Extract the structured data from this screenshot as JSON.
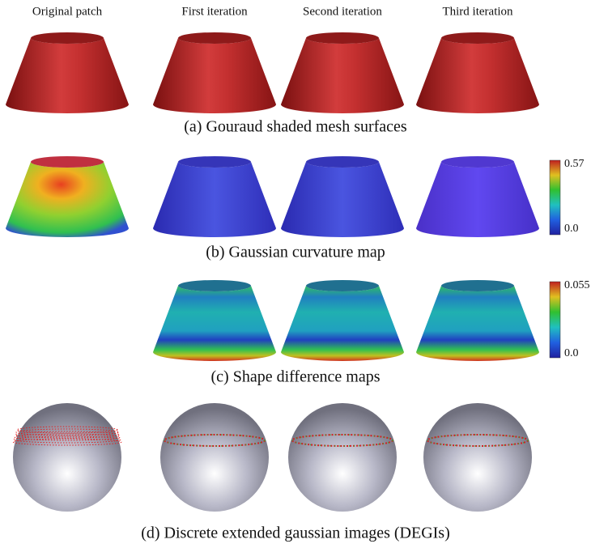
{
  "columns": [
    "Original patch",
    "First iteration",
    "Second iteration",
    "Third iteration"
  ],
  "captions": [
    "(a)  Gouraud shaded mesh surfaces",
    "(b)  Gaussian curvature map",
    "(c)  Shape difference maps",
    "(d)  Discrete extended gaussian images (DEGIs)"
  ],
  "colorbars": [
    {
      "max": "0.57",
      "min": "0.0"
    },
    {
      "max": "0.055",
      "min": "0.0"
    }
  ]
}
